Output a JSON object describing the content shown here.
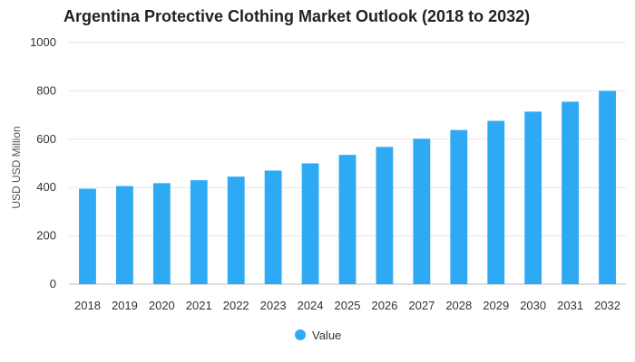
{
  "chart_data": {
    "type": "bar",
    "title": "Argentina Protective Clothing Market Outlook (2018 to 2032)",
    "xlabel": "",
    "ylabel": "USD USD Million",
    "categories": [
      "2018",
      "2019",
      "2020",
      "2021",
      "2022",
      "2023",
      "2024",
      "2025",
      "2026",
      "2027",
      "2028",
      "2029",
      "2030",
      "2031",
      "2032"
    ],
    "series": [
      {
        "name": "Value",
        "color": "#2eaaf5",
        "values": [
          395,
          406,
          418,
          430,
          445,
          470,
          500,
          535,
          568,
          602,
          638,
          676,
          714,
          755,
          800
        ]
      }
    ],
    "ylim": [
      0,
      1000
    ],
    "yticks": [
      0,
      200,
      400,
      600,
      800,
      1000
    ],
    "grid": true,
    "legend": "bottom-center"
  }
}
